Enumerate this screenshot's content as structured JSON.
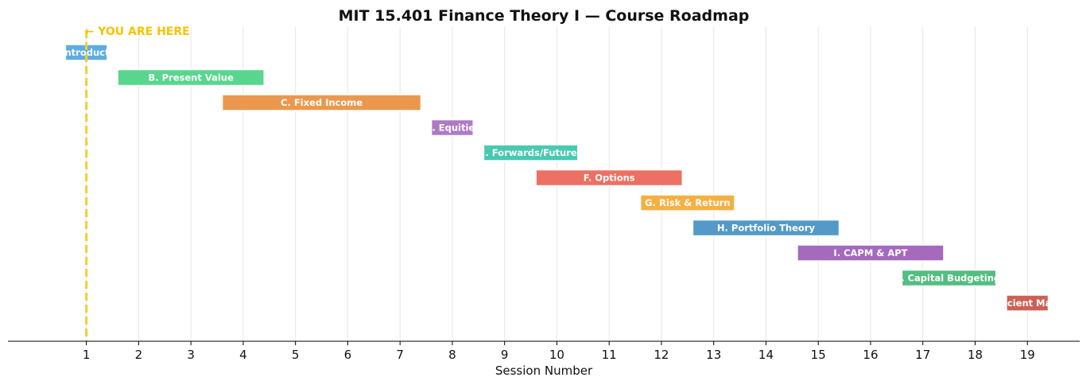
{
  "chart_data": {
    "type": "bar",
    "orientation": "horizontal-gantt",
    "title": "MIT 15.401 Finance Theory I — Course Roadmap",
    "xlabel": "Session Number",
    "ylabel": "",
    "xlim": [
      -0.5,
      20
    ],
    "xticks": [
      1,
      2,
      3,
      4,
      5,
      6,
      7,
      8,
      9,
      10,
      11,
      12,
      13,
      14,
      15,
      16,
      17,
      18,
      19
    ],
    "grid": "vertical",
    "marker": {
      "x": 1,
      "label": "← YOU ARE HERE",
      "color": "#f0d030",
      "label_color": "#f5c400"
    },
    "tasks": [
      {
        "label": "A. Introduction",
        "start": 1,
        "end": 1,
        "color": "#5dade2"
      },
      {
        "label": "B. Present Value",
        "start": 2,
        "end": 4,
        "color": "#58d68d"
      },
      {
        "label": "C. Fixed Income",
        "start": 4,
        "end": 7,
        "color": "#eb984e"
      },
      {
        "label": "D. Equities",
        "start": 8,
        "end": 8,
        "color": "#af7ac5"
      },
      {
        "label": "E. Forwards/Futures",
        "start": 9,
        "end": 10,
        "color": "#48c9b0"
      },
      {
        "label": "F. Options",
        "start": 10,
        "end": 12,
        "color": "#ec7063"
      },
      {
        "label": "G. Risk & Return",
        "start": 12,
        "end": 13,
        "color": "#f5b041"
      },
      {
        "label": "H. Portfolio Theory",
        "start": 13,
        "end": 15,
        "color": "#5499c7"
      },
      {
        "label": "I. CAPM & APT",
        "start": 15,
        "end": 17,
        "color": "#a569bd"
      },
      {
        "label": "J. Capital Budgeting",
        "start": 17,
        "end": 18,
        "color": "#52be80"
      },
      {
        "label": "K. Efficient Markets",
        "start": 19,
        "end": 19,
        "color": "#cd6155"
      }
    ]
  }
}
